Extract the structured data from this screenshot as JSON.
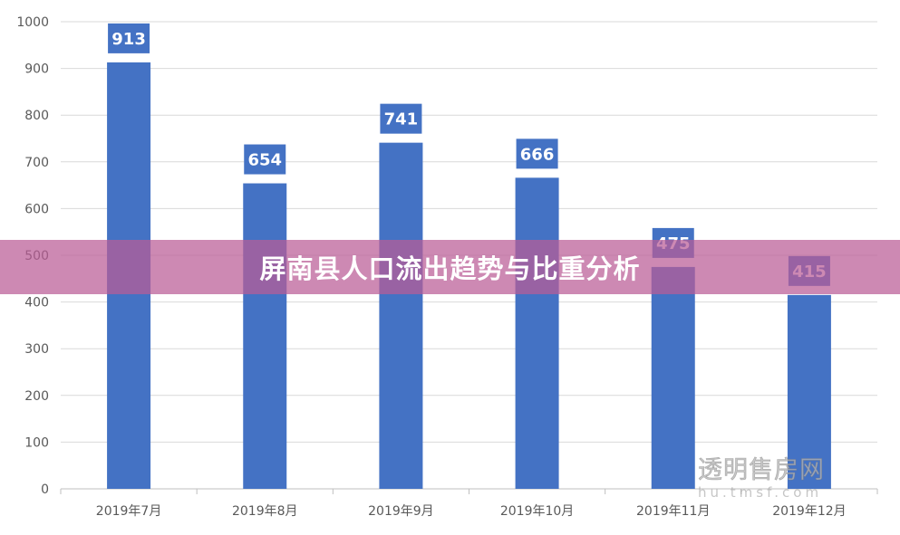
{
  "chart_data": {
    "type": "bar",
    "title": "屏南县人口流出趋势与比重分析",
    "categories": [
      "2019年7月",
      "2019年8月",
      "2019年9月",
      "2019年10月",
      "2019年11月",
      "2019年12月"
    ],
    "values": [
      913,
      654,
      741,
      666,
      475,
      415
    ],
    "data_labels": [
      "913",
      "654",
      "741",
      "666",
      "475",
      "415"
    ],
    "ylim": [
      0,
      1000
    ],
    "yticks": [
      "0",
      "100",
      "200",
      "300",
      "400",
      "500",
      "600",
      "700",
      "800",
      "900",
      "1000"
    ],
    "grid": true,
    "colors": {
      "bar": "#4472C4",
      "label_bg": "#4472C4",
      "label_text": "#ffffff",
      "grid": "#d9d9d9",
      "axis_text": "#595959"
    }
  },
  "banner": {
    "text": "屏南县人口流出趋势与比重分析"
  },
  "watermark": {
    "title": "透明售房网",
    "url": "hu.tmsf.com"
  }
}
